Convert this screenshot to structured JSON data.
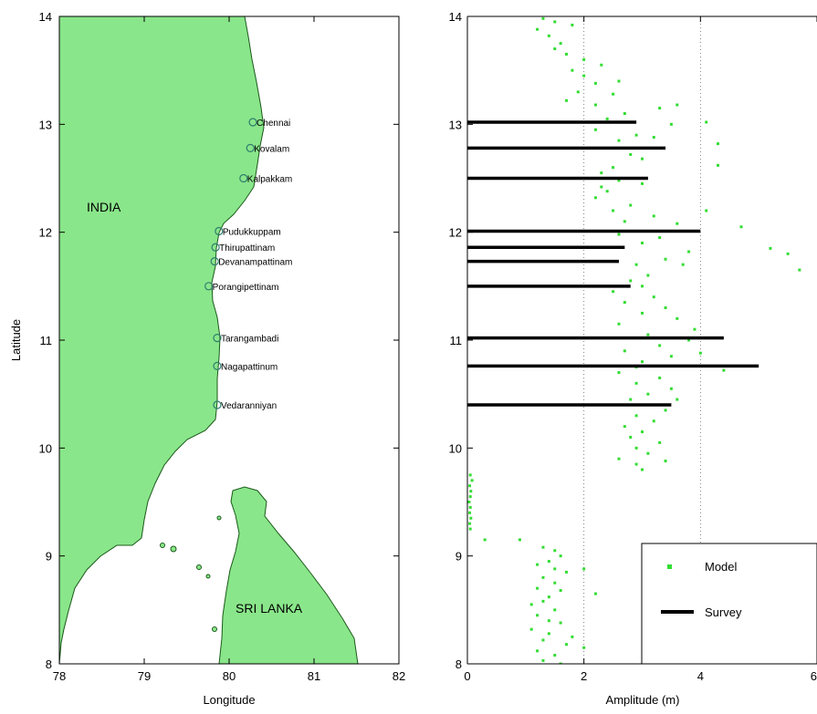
{
  "chart_data": [
    {
      "type": "map",
      "xlabel": "Longitude",
      "ylabel": "Latitude",
      "xlim": [
        78,
        82
      ],
      "ylim": [
        8,
        14
      ],
      "xticks": [
        78,
        79,
        80,
        81,
        82
      ],
      "yticks": [
        8,
        9,
        10,
        11,
        12,
        13,
        14
      ],
      "land_color": "#8ae68a",
      "marker_color": "#2e7d6e",
      "regions": [
        "INDIA",
        "SRI LANKA"
      ],
      "stations": [
        {
          "name": "Chennai",
          "lon": 80.28,
          "lat": 13.02
        },
        {
          "name": "Kovalam",
          "lon": 80.25,
          "lat": 12.78
        },
        {
          "name": "Kalpakkam",
          "lon": 80.17,
          "lat": 12.5
        },
        {
          "name": "Pudukkuppam",
          "lon": 79.88,
          "lat": 12.01
        },
        {
          "name": "Thirupattinam",
          "lon": 79.84,
          "lat": 11.86
        },
        {
          "name": "Devanampattinam",
          "lon": 79.83,
          "lat": 11.73
        },
        {
          "name": "Porangipettinam",
          "lon": 79.76,
          "lat": 11.5
        },
        {
          "name": "Tarangambadi",
          "lon": 79.86,
          "lat": 11.02
        },
        {
          "name": "Nagapattinum",
          "lon": 79.86,
          "lat": 10.76
        },
        {
          "name": "Vedaranniyan",
          "lon": 79.86,
          "lat": 10.4
        }
      ]
    },
    {
      "type": "scatter+bar",
      "xlabel": "Amplitude (m)",
      "ylabel": "",
      "xlim": [
        0,
        6
      ],
      "ylim": [
        8,
        14
      ],
      "xticks": [
        0,
        2,
        4,
        6
      ],
      "yticks": [
        8,
        9,
        10,
        11,
        12,
        13,
        14
      ],
      "vgrid": [
        2,
        4
      ],
      "series": [
        {
          "name": "Model",
          "kind": "scatter",
          "color": "#33dd33",
          "points": [
            [
              1.3,
              13.98
            ],
            [
              1.5,
              13.95
            ],
            [
              1.8,
              13.92
            ],
            [
              1.2,
              13.88
            ],
            [
              1.4,
              13.82
            ],
            [
              1.6,
              13.75
            ],
            [
              1.5,
              13.7
            ],
            [
              1.7,
              13.65
            ],
            [
              2.0,
              13.6
            ],
            [
              2.3,
              13.55
            ],
            [
              1.8,
              13.5
            ],
            [
              2.0,
              13.45
            ],
            [
              2.6,
              13.4
            ],
            [
              2.2,
              13.38
            ],
            [
              1.9,
              13.3
            ],
            [
              2.5,
              13.28
            ],
            [
              1.7,
              13.22
            ],
            [
              2.2,
              13.18
            ],
            [
              3.3,
              13.15
            ],
            [
              3.6,
              13.18
            ],
            [
              2.7,
              13.1
            ],
            [
              2.4,
              13.05
            ],
            [
              4.1,
              13.02
            ],
            [
              3.5,
              13.0
            ],
            [
              2.2,
              12.95
            ],
            [
              2.9,
              12.9
            ],
            [
              3.2,
              12.88
            ],
            [
              2.6,
              12.85
            ],
            [
              4.3,
              12.82
            ],
            [
              2.1,
              12.78
            ],
            [
              2.8,
              12.72
            ],
            [
              3.0,
              12.68
            ],
            [
              2.5,
              12.6
            ],
            [
              4.3,
              12.62
            ],
            [
              2.3,
              12.55
            ],
            [
              2.2,
              12.5
            ],
            [
              2.6,
              12.48
            ],
            [
              3.0,
              12.45
            ],
            [
              2.3,
              12.42
            ],
            [
              2.4,
              12.38
            ],
            [
              2.2,
              12.32
            ],
            [
              2.8,
              12.25
            ],
            [
              2.5,
              12.2
            ],
            [
              4.1,
              12.2
            ],
            [
              3.2,
              12.15
            ],
            [
              2.7,
              12.1
            ],
            [
              3.6,
              12.08
            ],
            [
              4.7,
              12.05
            ],
            [
              2.6,
              11.98
            ],
            [
              3.3,
              11.95
            ],
            [
              3.0,
              11.9
            ],
            [
              5.2,
              11.85
            ],
            [
              3.8,
              11.82
            ],
            [
              5.5,
              11.8
            ],
            [
              3.4,
              11.75
            ],
            [
              2.9,
              11.7
            ],
            [
              3.7,
              11.7
            ],
            [
              5.7,
              11.65
            ],
            [
              3.1,
              11.6
            ],
            [
              2.8,
              11.55
            ],
            [
              3.0,
              11.5
            ],
            [
              2.5,
              11.45
            ],
            [
              3.2,
              11.4
            ],
            [
              2.7,
              11.35
            ],
            [
              3.4,
              11.3
            ],
            [
              3.0,
              11.25
            ],
            [
              3.6,
              11.2
            ],
            [
              2.6,
              11.15
            ],
            [
              3.9,
              11.1
            ],
            [
              3.1,
              11.05
            ],
            [
              3.8,
              11.0
            ],
            [
              3.3,
              10.95
            ],
            [
              2.7,
              10.9
            ],
            [
              4.0,
              10.88
            ],
            [
              3.5,
              10.85
            ],
            [
              3.0,
              10.8
            ],
            [
              2.9,
              10.75
            ],
            [
              4.4,
              10.72
            ],
            [
              2.6,
              10.7
            ],
            [
              3.3,
              10.65
            ],
            [
              2.9,
              10.6
            ],
            [
              3.5,
              10.55
            ],
            [
              3.1,
              10.5
            ],
            [
              2.8,
              10.45
            ],
            [
              3.6,
              10.45
            ],
            [
              2.7,
              10.4
            ],
            [
              3.4,
              10.35
            ],
            [
              2.9,
              10.3
            ],
            [
              3.2,
              10.25
            ],
            [
              2.7,
              10.2
            ],
            [
              3.0,
              10.15
            ],
            [
              2.8,
              10.1
            ],
            [
              3.3,
              10.05
            ],
            [
              2.9,
              10.0
            ],
            [
              3.1,
              9.95
            ],
            [
              2.6,
              9.9
            ],
            [
              3.4,
              9.88
            ],
            [
              2.9,
              9.85
            ],
            [
              3.0,
              9.8
            ],
            [
              0.05,
              9.75
            ],
            [
              0.08,
              9.7
            ],
            [
              0.04,
              9.65
            ],
            [
              0.06,
              9.6
            ],
            [
              0.05,
              9.55
            ],
            [
              0.03,
              9.5
            ],
            [
              0.05,
              9.45
            ],
            [
              0.04,
              9.4
            ],
            [
              0.06,
              9.35
            ],
            [
              0.04,
              9.3
            ],
            [
              0.05,
              9.25
            ],
            [
              0.3,
              9.15
            ],
            [
              0.9,
              9.15
            ],
            [
              1.3,
              9.08
            ],
            [
              1.5,
              9.05
            ],
            [
              1.6,
              9.0
            ],
            [
              1.4,
              8.95
            ],
            [
              1.2,
              8.92
            ],
            [
              1.5,
              8.88
            ],
            [
              1.7,
              8.85
            ],
            [
              1.3,
              8.8
            ],
            [
              1.5,
              8.75
            ],
            [
              1.2,
              8.7
            ],
            [
              1.6,
              8.68
            ],
            [
              1.4,
              8.62
            ],
            [
              1.3,
              8.58
            ],
            [
              1.1,
              8.55
            ],
            [
              1.5,
              8.5
            ],
            [
              1.2,
              8.45
            ],
            [
              1.4,
              8.4
            ],
            [
              1.6,
              8.38
            ],
            [
              1.1,
              8.32
            ],
            [
              1.4,
              8.28
            ],
            [
              1.3,
              8.22
            ],
            [
              1.7,
              8.18
            ],
            [
              1.2,
              8.12
            ],
            [
              1.5,
              8.08
            ],
            [
              1.3,
              8.03
            ],
            [
              1.6,
              8.0
            ],
            [
              2.0,
              8.15
            ],
            [
              1.8,
              8.25
            ],
            [
              2.2,
              8.65
            ],
            [
              2.0,
              8.88
            ]
          ]
        },
        {
          "name": "Survey",
          "kind": "horizontal-bar",
          "color": "#000000",
          "bars": [
            {
              "lat": 13.02,
              "amp": 2.9
            },
            {
              "lat": 12.78,
              "amp": 3.4
            },
            {
              "lat": 12.5,
              "amp": 3.1
            },
            {
              "lat": 12.01,
              "amp": 4.0
            },
            {
              "lat": 11.86,
              "amp": 2.7
            },
            {
              "lat": 11.73,
              "amp": 2.6
            },
            {
              "lat": 11.5,
              "amp": 2.8
            },
            {
              "lat": 11.02,
              "amp": 4.4
            },
            {
              "lat": 10.76,
              "amp": 5.0
            },
            {
              "lat": 10.4,
              "amp": 3.5
            }
          ]
        }
      ],
      "legend_position": "bottom-right"
    }
  ]
}
